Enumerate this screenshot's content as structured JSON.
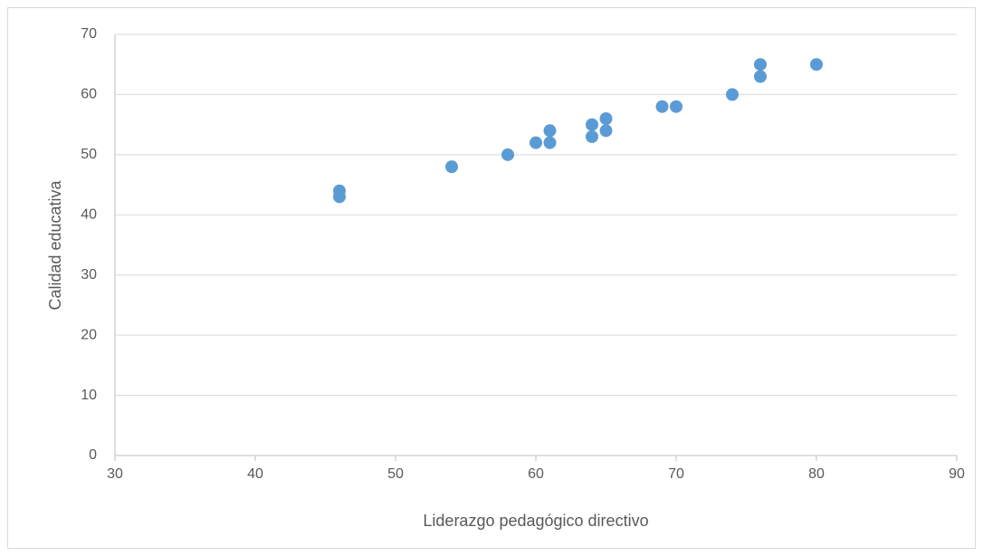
{
  "chart_data": {
    "type": "scatter",
    "xlabel": "Liderazgo pedagógico directivo",
    "ylabel": "Calidad educativa",
    "series": [
      {
        "color": "#5b9bd5",
        "x": [
          46,
          46,
          54,
          58,
          60,
          61,
          61,
          64,
          64,
          65,
          65,
          69,
          70,
          74,
          76,
          76,
          80
        ],
        "values": [
          44,
          43,
          48,
          50,
          52,
          54,
          52,
          55,
          53,
          56,
          54,
          58,
          58,
          60,
          65,
          63,
          65
        ]
      }
    ],
    "xlim": [
      30,
      90
    ],
    "xticks": [
      30,
      40,
      50,
      60,
      70,
      80,
      90
    ],
    "ylim": [
      0,
      70
    ],
    "yticks": [
      0,
      10,
      20,
      30,
      40,
      50,
      60,
      70
    ],
    "grid": true
  }
}
